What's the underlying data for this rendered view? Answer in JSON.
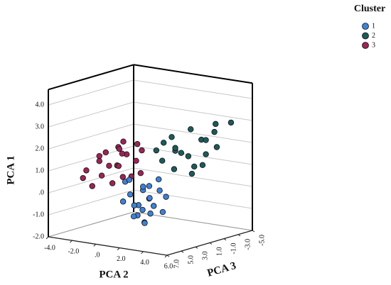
{
  "chart_data": {
    "type": "scatter3d",
    "legend_title": "Cluster",
    "xlabel": "PCA 2",
    "ylabel": "PCA 3",
    "zlabel": "PCA 1",
    "xlim": [
      -4,
      6
    ],
    "ylim": [
      7,
      -5
    ],
    "zlim": [
      -2,
      4.7
    ],
    "xticks": [
      {
        "value": -4,
        "label": "-4.0"
      },
      {
        "value": -2,
        "label": "-2.0"
      },
      {
        "value": 0,
        "label": ".0"
      },
      {
        "value": 2,
        "label": "2.0"
      },
      {
        "value": 4,
        "label": "4.0"
      },
      {
        "value": 6,
        "label": "6.0"
      }
    ],
    "yticks": [
      {
        "value": 7,
        "label": "7.0"
      },
      {
        "value": 5,
        "label": "5.0"
      },
      {
        "value": 3,
        "label": "3.0"
      },
      {
        "value": 1,
        "label": "1.0"
      },
      {
        "value": -1,
        "label": "-1.0"
      },
      {
        "value": -3,
        "label": "-3.0"
      },
      {
        "value": -5,
        "label": "-5.0"
      }
    ],
    "zticks": [
      {
        "value": -2,
        "label": "-2.0"
      },
      {
        "value": -1,
        "label": "-1.0"
      },
      {
        "value": 0,
        "label": ".0"
      },
      {
        "value": 1,
        "label": "1.0"
      },
      {
        "value": 2,
        "label": "2.0"
      },
      {
        "value": 3,
        "label": "3.0"
      },
      {
        "value": 4,
        "label": "4.0"
      }
    ],
    "grid": true,
    "legend": "top-right",
    "series": [
      {
        "name": "1",
        "color": "#3d82d6",
        "x": [
          1.2,
          1.8,
          0.8,
          2.2,
          1.5,
          0.5,
          2.5,
          1.0,
          1.9,
          2.8,
          0.2,
          1.4,
          2.0,
          1.1,
          2.6,
          0.6,
          1.7,
          3.0,
          1.3,
          2.3,
          0.9,
          1.6
        ],
        "y": [
          3,
          2.5,
          3.5,
          3,
          2,
          4,
          2.2,
          2.8,
          3.6,
          1.8,
          3.2,
          4,
          1.5,
          2.2,
          3.2,
          2.6,
          3.2,
          2.6,
          1.6,
          4,
          3.8,
          2.8
        ],
        "z": [
          -0.5,
          -0.2,
          0,
          -0.8,
          0.3,
          -0.3,
          0.2,
          -1.0,
          -0.6,
          -0.1,
          0.5,
          -0.9,
          0.6,
          0.1,
          -0.4,
          -0.6,
          0.4,
          -0.7,
          -0.3,
          -1.1,
          0.7,
          -1.3
        ]
      },
      {
        "name": "2",
        "color": "#1d5a5c",
        "x": [
          3,
          4,
          3.5,
          2.5,
          4.5,
          2,
          3.2,
          2.8,
          3.8,
          2.2,
          4.2,
          1.8,
          3.6,
          2.6,
          4.8,
          3,
          2.4,
          3.4,
          2.0,
          4.0
        ],
        "y": [
          -1,
          -3,
          -2,
          0,
          -2.5,
          1,
          -1.5,
          0.5,
          -3.5,
          0,
          -1,
          1.5,
          -0.5,
          -2,
          -4,
          1,
          -1,
          -2.8,
          0.8,
          -1.8
        ],
        "z": [
          1.5,
          2.5,
          2.2,
          1.8,
          1.9,
          1.4,
          1.0,
          2.0,
          2.8,
          2.4,
          1.2,
          1.9,
          0.8,
          2.6,
          2.9,
          1.1,
          1.6,
          2.1,
          2.2,
          1.6
        ]
      },
      {
        "name": "3",
        "color": "#9c2457",
        "x": [
          0,
          -2,
          -1,
          0.5,
          -0.5,
          1,
          -1.5,
          0.2,
          0.8,
          -0.8,
          1.5,
          -1.2,
          0.3,
          -0.3,
          1.2,
          -1.8,
          0.6,
          -0.6,
          1.0,
          0.0,
          -2.4,
          0.4
        ],
        "y": [
          4,
          5,
          4.5,
          3.5,
          3,
          3,
          4,
          5,
          2.5,
          3.8,
          3.2,
          5.5,
          4.2,
          2.8,
          4,
          3.5,
          4.8,
          4.6,
          2.2,
          3.2,
          4.8,
          3.8
        ],
        "z": [
          1.3,
          1,
          0.8,
          1.8,
          2,
          1.5,
          1.6,
          0.6,
          2.2,
          1.2,
          1.0,
          0.4,
          2.1,
          1.7,
          0.9,
          1.3,
          1.4,
          1.9,
          1.9,
          0.7,
          0.6,
          2.4
        ]
      }
    ]
  }
}
